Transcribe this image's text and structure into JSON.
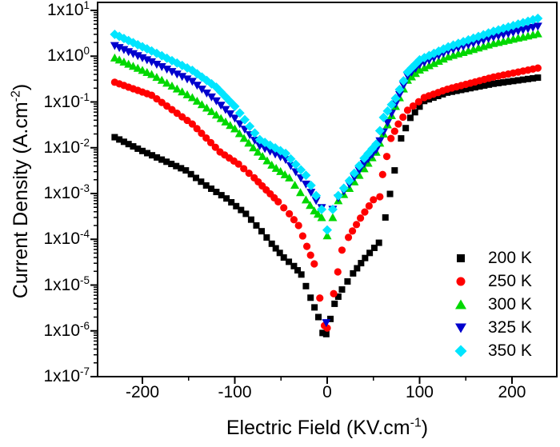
{
  "figure_background": "#ffffff",
  "axis_color": "#000000",
  "chart_data": {
    "type": "scatter",
    "title": "",
    "xlabel": {
      "main": "Electric Field (KV.cm",
      "sup": "-1",
      "end": ")"
    },
    "ylabel": {
      "main": "Current Density (A.cm",
      "sup": "-2",
      "end": ")"
    },
    "x_range": [
      -248.5,
      248.5
    ],
    "x_ticks": [
      -200,
      -100,
      0,
      100,
      200
    ],
    "x_minor_step": 50,
    "y_scale": "log",
    "y_log_range": [
      -7,
      1.175
    ],
    "y_tick_prefix": "1x10",
    "y_tick_exponents": [
      1,
      0,
      -1,
      -2,
      -3,
      -4,
      -5,
      -6,
      -7
    ],
    "grid": false,
    "legend_position": "bottom-right",
    "marker_step": 5.2,
    "series": [
      {
        "name": "200 K",
        "color": "#000000",
        "marker": "square",
        "anchors": [
          [
            -230,
            0.017
          ],
          [
            -200,
            0.0085
          ],
          [
            -153,
            0.0032
          ],
          [
            -131,
            0.0015
          ],
          [
            -109,
            0.00078
          ],
          [
            -88,
            0.00036
          ],
          [
            -71,
            0.00015
          ],
          [
            -60,
            8e-05
          ],
          [
            -47,
            4e-05
          ],
          [
            -36,
            2.6e-05
          ],
          [
            -28,
            1.7e-05
          ],
          [
            -18,
            5.3e-06
          ],
          [
            -9.5,
            2e-06
          ],
          [
            -5,
            9e-07
          ],
          [
            -1,
            8.5e-07
          ],
          [
            8,
            3.9e-06
          ],
          [
            16,
            8e-06
          ],
          [
            28,
            1.8e-05
          ],
          [
            41,
            3.9e-05
          ],
          [
            56,
            8.4e-05
          ],
          [
            63,
            0.0003
          ],
          [
            73,
            0.0032
          ],
          [
            80,
            0.016
          ],
          [
            90,
            0.045
          ],
          [
            105,
            0.105
          ],
          [
            130,
            0.16
          ],
          [
            180,
            0.25
          ],
          [
            228,
            0.34
          ]
        ]
      },
      {
        "name": "250 K",
        "color": "#ff0000",
        "marker": "circle",
        "anchors": [
          [
            -230,
            0.27
          ],
          [
            -190,
            0.14
          ],
          [
            -146,
            0.033
          ],
          [
            -116,
            0.0081
          ],
          [
            -96,
            0.0044
          ],
          [
            -79,
            0.0022
          ],
          [
            -66,
            0.0012
          ],
          [
            -53,
            0.00066
          ],
          [
            -41,
            0.00036
          ],
          [
            -31,
            0.0002
          ],
          [
            -22,
            7e-05
          ],
          [
            -14,
            2.9e-05
          ],
          [
            -8,
            5.2e-06
          ],
          [
            -3,
            1.3e-06
          ],
          [
            0,
            1.15e-06
          ],
          [
            7,
            6.5e-06
          ],
          [
            16,
            5.8e-05
          ],
          [
            23,
            0.00011
          ],
          [
            36,
            0.00029
          ],
          [
            50,
            0.00073
          ],
          [
            57,
            0.00085
          ],
          [
            60,
            0.0026
          ],
          [
            69,
            0.016
          ],
          [
            77,
            0.033
          ],
          [
            87,
            0.066
          ],
          [
            105,
            0.125
          ],
          [
            130,
            0.19
          ],
          [
            180,
            0.35
          ],
          [
            228,
            0.55
          ]
        ]
      },
      {
        "name": "300 K",
        "color": "#00d800",
        "marker": "triangle-up",
        "anchors": [
          [
            -230,
            0.92
          ],
          [
            -190,
            0.4
          ],
          [
            -146,
            0.125
          ],
          [
            -120,
            0.052
          ],
          [
            -100,
            0.026
          ],
          [
            -80,
            0.01
          ],
          [
            -60,
            0.0042
          ],
          [
            -41,
            0.0022
          ],
          [
            -23,
            0.00073
          ],
          [
            -14,
            0.00042
          ],
          [
            -6,
            0.0003
          ],
          [
            0,
            0.00012
          ],
          [
            6,
            0.0003
          ],
          [
            12,
            0.0007
          ],
          [
            24,
            0.0013
          ],
          [
            40,
            0.0035
          ],
          [
            53,
            0.008
          ],
          [
            61,
            0.02
          ],
          [
            74,
            0.08
          ],
          [
            87,
            0.3
          ],
          [
            100,
            0.5
          ],
          [
            131,
            0.97
          ],
          [
            180,
            1.9
          ],
          [
            228,
            3.1
          ]
        ]
      },
      {
        "name": "325 K",
        "color": "#0000cd",
        "marker": "triangle-down",
        "anchors": [
          [
            -230,
            1.7
          ],
          [
            -190,
            0.75
          ],
          [
            -146,
            0.28
          ],
          [
            -120,
            0.105
          ],
          [
            -100,
            0.044
          ],
          [
            -73,
            0.011
          ],
          [
            -45,
            0.0055
          ],
          [
            -23,
            0.0016
          ],
          [
            -12,
            0.0007
          ],
          [
            -6,
            0.00049
          ],
          [
            -1,
            1.5e-06
          ],
          [
            6,
            0.00045
          ],
          [
            12,
            0.0008
          ],
          [
            24,
            0.0016
          ],
          [
            40,
            0.0045
          ],
          [
            53,
            0.009
          ],
          [
            61,
            0.022
          ],
          [
            74,
            0.09
          ],
          [
            87,
            0.37
          ],
          [
            100,
            0.65
          ],
          [
            131,
            1.3
          ],
          [
            180,
            2.6
          ],
          [
            228,
            4.5
          ]
        ]
      },
      {
        "name": "350 K",
        "color": "#00e5ff",
        "marker": "diamond",
        "anchors": [
          [
            -230,
            3.0
          ],
          [
            -190,
            1.3
          ],
          [
            -146,
            0.49
          ],
          [
            -120,
            0.21
          ],
          [
            -100,
            0.08
          ],
          [
            -73,
            0.015
          ],
          [
            -45,
            0.0075
          ],
          [
            -23,
            0.0025
          ],
          [
            -12,
            0.0009
          ],
          [
            -6,
            0.00045
          ],
          [
            0,
            0.00016
          ],
          [
            6,
            0.00045
          ],
          [
            12,
            0.0009
          ],
          [
            24,
            0.0019
          ],
          [
            40,
            0.0059
          ],
          [
            53,
            0.012
          ],
          [
            61,
            0.046
          ],
          [
            74,
            0.12
          ],
          [
            87,
            0.45
          ],
          [
            100,
            0.83
          ],
          [
            131,
            1.6
          ],
          [
            180,
            3.5
          ],
          [
            228,
            6.7
          ]
        ]
      }
    ]
  }
}
